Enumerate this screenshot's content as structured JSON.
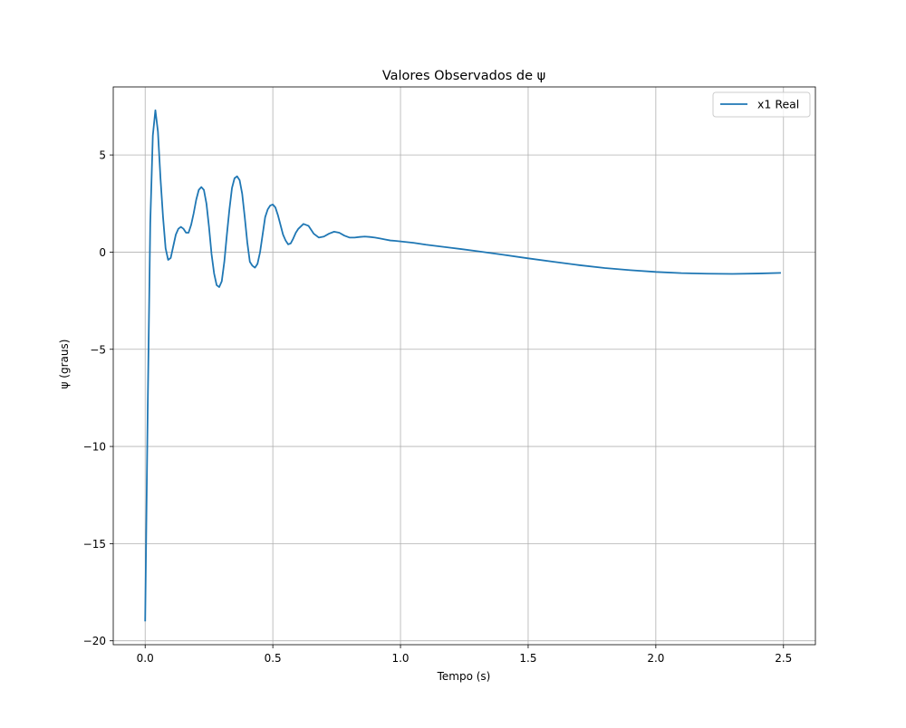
{
  "chart_data": {
    "type": "line",
    "title": "Valores Observados de ψ",
    "xlabel": "Tempo (s)",
    "ylabel": "ψ (graus)",
    "xlim": [
      -0.125,
      2.625
    ],
    "ylim": [
      -20.2,
      8.5
    ],
    "xticks": [
      0.0,
      0.5,
      1.0,
      1.5,
      2.0,
      2.5
    ],
    "xtick_labels": [
      "0.0",
      "0.5",
      "1.0",
      "1.5",
      "2.0",
      "2.5"
    ],
    "yticks": [
      -20,
      -15,
      -10,
      -5,
      0,
      5
    ],
    "ytick_labels": [
      "−20",
      "−15",
      "−10",
      "−5",
      "0",
      "5"
    ],
    "grid": true,
    "legend_position": "top-right",
    "series": [
      {
        "name": "x1 Real",
        "color": "#1f77b4",
        "x": [
          0.0,
          0.01,
          0.02,
          0.03,
          0.04,
          0.05,
          0.06,
          0.07,
          0.08,
          0.09,
          0.1,
          0.11,
          0.12,
          0.13,
          0.14,
          0.15,
          0.16,
          0.17,
          0.18,
          0.19,
          0.2,
          0.21,
          0.22,
          0.23,
          0.24,
          0.25,
          0.26,
          0.27,
          0.28,
          0.29,
          0.3,
          0.31,
          0.32,
          0.33,
          0.34,
          0.35,
          0.36,
          0.37,
          0.38,
          0.39,
          0.4,
          0.41,
          0.42,
          0.43,
          0.44,
          0.45,
          0.46,
          0.47,
          0.48,
          0.49,
          0.5,
          0.51,
          0.52,
          0.53,
          0.54,
          0.55,
          0.56,
          0.57,
          0.58,
          0.59,
          0.6,
          0.62,
          0.64,
          0.66,
          0.68,
          0.7,
          0.72,
          0.74,
          0.76,
          0.78,
          0.8,
          0.82,
          0.84,
          0.86,
          0.88,
          0.9,
          0.92,
          0.94,
          0.96,
          0.98,
          1.0,
          1.05,
          1.1,
          1.2,
          1.3,
          1.4,
          1.5,
          1.6,
          1.7,
          1.8,
          1.9,
          2.0,
          2.1,
          2.2,
          2.3,
          2.4,
          2.49
        ],
        "y": [
          -19.0,
          -8.0,
          1.5,
          6.0,
          7.3,
          6.2,
          3.8,
          1.8,
          0.2,
          -0.4,
          -0.3,
          0.3,
          0.9,
          1.2,
          1.3,
          1.2,
          1.0,
          1.0,
          1.4,
          2.0,
          2.7,
          3.2,
          3.35,
          3.2,
          2.5,
          1.3,
          -0.1,
          -1.1,
          -1.7,
          -1.8,
          -1.5,
          -0.5,
          0.9,
          2.2,
          3.3,
          3.8,
          3.9,
          3.7,
          3.0,
          1.8,
          0.5,
          -0.5,
          -0.7,
          -0.8,
          -0.6,
          0.0,
          0.9,
          1.8,
          2.2,
          2.4,
          2.45,
          2.3,
          1.9,
          1.4,
          0.9,
          0.6,
          0.4,
          0.45,
          0.7,
          1.0,
          1.2,
          1.45,
          1.35,
          0.95,
          0.75,
          0.8,
          0.95,
          1.05,
          1.0,
          0.85,
          0.75,
          0.75,
          0.78,
          0.8,
          0.78,
          0.75,
          0.7,
          0.65,
          0.6,
          0.58,
          0.55,
          0.48,
          0.38,
          0.22,
          0.05,
          -0.13,
          -0.32,
          -0.5,
          -0.67,
          -0.82,
          -0.93,
          -1.02,
          -1.08,
          -1.11,
          -1.12,
          -1.1,
          -1.07
        ]
      }
    ]
  }
}
